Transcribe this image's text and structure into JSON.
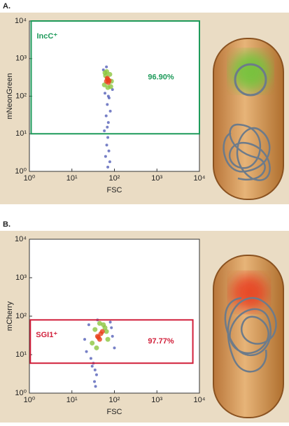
{
  "chart_data": [
    {
      "type": "scatter",
      "panel_label": "A.",
      "x_label": "FSC",
      "y_label": "mNeonGreen",
      "log_x": true,
      "log_y": true,
      "xlim": [
        1,
        10000
      ],
      "ylim": [
        1,
        10000
      ],
      "xticks": [
        {
          "value": 1,
          "label": "10⁰"
        },
        {
          "value": 10,
          "label": "10¹"
        },
        {
          "value": 100,
          "label": "10²"
        },
        {
          "value": 1000,
          "label": "10³"
        },
        {
          "value": 10000,
          "label": "10⁴"
        }
      ],
      "yticks": [
        {
          "value": 1,
          "label": "10⁰"
        },
        {
          "value": 10,
          "label": "10¹"
        },
        {
          "value": 100,
          "label": "10²"
        },
        {
          "value": 1000,
          "label": "10³"
        },
        {
          "value": 10000,
          "label": "10⁴"
        }
      ],
      "gate": {
        "label": "IncC⁺",
        "percent_label": "96.90%",
        "color": "#1e9a5a",
        "xlim": [
          1.1,
          10000
        ],
        "ylim": [
          10,
          10000
        ]
      },
      "series": [
        {
          "color": "#5560b8",
          "x": [
            55,
            90,
            60,
            75,
            68,
            80,
            64,
            72,
            58,
            70,
            66,
            74,
            62,
            78,
            70,
            65,
            72,
            68
          ],
          "y": [
            500,
            150,
            120,
            90,
            60,
            40,
            30,
            20,
            12,
            8,
            5,
            3.5,
            2.5,
            1.8,
            1.3,
            600,
            100,
            15
          ]
        },
        {
          "color": "#8cc63f",
          "x": [
            58,
            62,
            78,
            82,
            60,
            85,
            70,
            66
          ],
          "y": [
            200,
            350,
            380,
            180,
            420,
            250,
            170,
            450
          ]
        },
        {
          "color": "#e8401c",
          "x": [
            65,
            70,
            72,
            68,
            75
          ],
          "y": [
            250,
            280,
            230,
            300,
            260
          ]
        }
      ]
    },
    {
      "type": "scatter",
      "panel_label": "B.",
      "x_label": "FSC",
      "y_label": "mCherry",
      "log_x": true,
      "log_y": true,
      "xlim": [
        1,
        10000
      ],
      "ylim": [
        1,
        10000
      ],
      "xticks": [
        {
          "value": 1,
          "label": "10⁰"
        },
        {
          "value": 10,
          "label": "10¹"
        },
        {
          "value": 100,
          "label": "10²"
        },
        {
          "value": 1000,
          "label": "10³"
        },
        {
          "value": 10000,
          "label": "10⁴"
        }
      ],
      "yticks": [
        {
          "value": 1,
          "label": "10⁰"
        },
        {
          "value": 10,
          "label": "10¹"
        },
        {
          "value": 100,
          "label": "10²"
        },
        {
          "value": 1000,
          "label": "10³"
        },
        {
          "value": 10000,
          "label": "10⁴"
        }
      ],
      "gate": {
        "label": "SGI1⁺",
        "percent_label": "97.77%",
        "color": "#d11f3a",
        "xlim": [
          1.05,
          7000
        ],
        "ylim": [
          6,
          80
        ]
      },
      "series": [
        {
          "color": "#5560b8",
          "x": [
            22,
            90,
            25,
            100,
            80,
            28,
            32,
            35,
            38,
            34,
            36,
            30,
            40,
            85,
            20
          ],
          "y": [
            12,
            30,
            60,
            15,
            70,
            8,
            6,
            4,
            3,
            2,
            1.5,
            5,
            80,
            50,
            25
          ]
        },
        {
          "color": "#8cc63f",
          "x": [
            30,
            60,
            35,
            70,
            55,
            38,
            65,
            45
          ],
          "y": [
            20,
            50,
            45,
            25,
            60,
            15,
            40,
            65
          ]
        },
        {
          "color": "#e8401c",
          "x": [
            40,
            48,
            45,
            52,
            42
          ],
          "y": [
            30,
            35,
            25,
            40,
            28
          ]
        }
      ]
    }
  ]
}
